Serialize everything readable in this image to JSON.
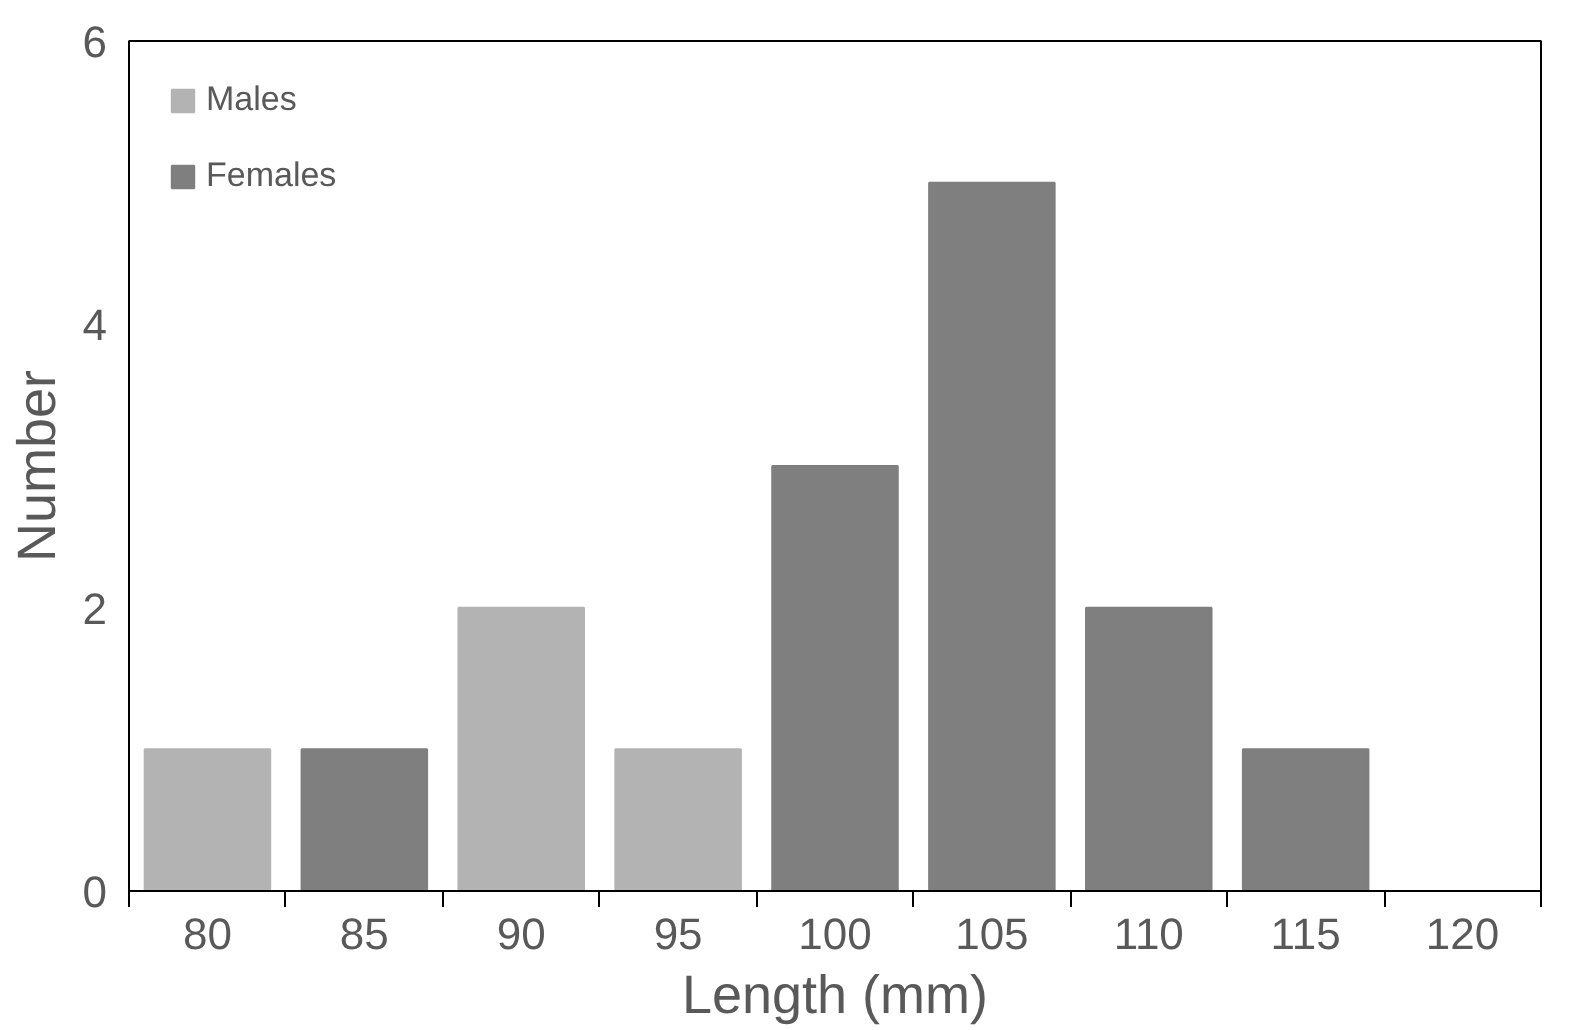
{
  "chart_data": {
    "type": "bar",
    "xlabel": "Length (mm)",
    "ylabel": "Number",
    "categories": [
      "80",
      "85",
      "90",
      "95",
      "100",
      "105",
      "110",
      "115",
      "120"
    ],
    "stacked": true,
    "series": [
      {
        "name": "Males",
        "color": "#b3b3b3",
        "values": [
          1,
          null,
          2,
          1,
          null,
          null,
          null,
          null,
          null
        ]
      },
      {
        "name": "Females",
        "color": "#7f7f7f",
        "values": [
          null,
          1,
          null,
          null,
          3,
          5,
          2,
          1,
          0
        ]
      }
    ],
    "ylim": [
      0,
      6
    ],
    "yticks": [
      0,
      2,
      4,
      6
    ],
    "grid": false,
    "legend": "top left"
  }
}
